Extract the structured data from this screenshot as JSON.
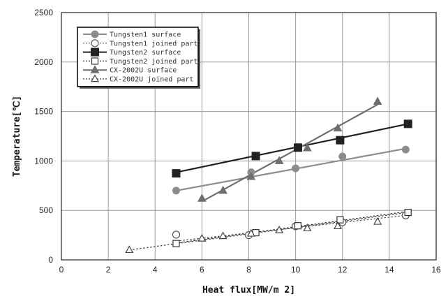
{
  "chart_data": {
    "type": "scatter",
    "title": "",
    "xlabel": "Heat flux[MW/m 2]",
    "ylabel": "Temperature[℃]",
    "xlim": [
      0,
      16
    ],
    "ylim": [
      0,
      2500
    ],
    "xticks": [
      0,
      2,
      4,
      6,
      8,
      10,
      12,
      14,
      16
    ],
    "yticks": [
      0,
      500,
      1000,
      1500,
      2000,
      2500
    ],
    "grid": true,
    "legend_position": "top-left",
    "series": [
      {
        "name": "Tungsten1 surface",
        "marker": "circle-filled",
        "line": "solid",
        "color": "#8c8c8c",
        "points": [
          [
            4.9,
            700
          ],
          [
            8.1,
            885
          ],
          [
            10.0,
            925
          ],
          [
            12.0,
            1045
          ],
          [
            14.7,
            1115
          ]
        ],
        "fit": [
          [
            4.9,
            700
          ],
          [
            14.7,
            1125
          ]
        ]
      },
      {
        "name": "Tungsten1 joined part",
        "marker": "circle-open",
        "line": "dotted",
        "color": "#555555",
        "points": [
          [
            4.9,
            255
          ],
          [
            8.0,
            250
          ],
          [
            10.0,
            340
          ],
          [
            12.0,
            380
          ],
          [
            14.7,
            450
          ]
        ],
        "fit": [
          [
            4.9,
            190
          ],
          [
            14.7,
            450
          ]
        ]
      },
      {
        "name": "Tungsten2 surface",
        "marker": "square-filled",
        "line": "solid",
        "color": "#222222",
        "points": [
          [
            4.9,
            875
          ],
          [
            8.3,
            1050
          ],
          [
            10.1,
            1135
          ],
          [
            11.9,
            1210
          ],
          [
            14.8,
            1375
          ]
        ],
        "fit": [
          [
            4.9,
            885
          ],
          [
            14.8,
            1375
          ]
        ]
      },
      {
        "name": "Tungsten2 joined part",
        "marker": "square-open",
        "line": "dotted",
        "color": "#333333",
        "points": [
          [
            4.9,
            165
          ],
          [
            8.3,
            275
          ],
          [
            10.1,
            345
          ],
          [
            11.9,
            405
          ],
          [
            14.8,
            480
          ]
        ],
        "fit": [
          [
            4.9,
            170
          ],
          [
            14.8,
            490
          ]
        ]
      },
      {
        "name": "CX-2002U surface",
        "marker": "triangle-filled",
        "line": "solid",
        "color": "#6e6e6e",
        "points": [
          [
            6.0,
            620
          ],
          [
            6.9,
            700
          ],
          [
            8.1,
            840
          ],
          [
            9.3,
            1000
          ],
          [
            10.5,
            1130
          ],
          [
            11.8,
            1330
          ],
          [
            13.5,
            1600
          ]
        ],
        "fit": [
          [
            6.0,
            590
          ],
          [
            13.5,
            1570
          ]
        ]
      },
      {
        "name": "CX-2002U joined part",
        "marker": "triangle-open",
        "line": "dotted",
        "color": "#444444",
        "points": [
          [
            2.9,
            100
          ],
          [
            6.0,
            215
          ],
          [
            6.9,
            240
          ],
          [
            8.1,
            265
          ],
          [
            9.3,
            300
          ],
          [
            10.5,
            320
          ],
          [
            11.8,
            340
          ],
          [
            13.5,
            385
          ]
        ],
        "fit": [
          [
            2.9,
            100
          ],
          [
            14.8,
            480
          ]
        ]
      }
    ]
  }
}
